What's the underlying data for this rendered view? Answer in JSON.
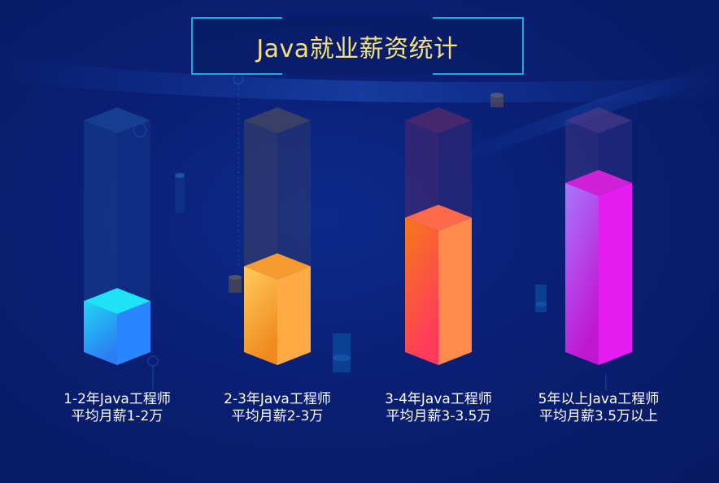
{
  "title": "Java就业薪资统计",
  "colors": {
    "title_text": "#f6e27a",
    "title_border": "#1fa8df",
    "label_text": "#ffffff"
  },
  "chart_data": {
    "type": "bar",
    "style": "3d-cylinder-glass",
    "title": "Java就业薪资统计",
    "categories": [
      [
        "1-2年Java工程师",
        "平均月薪1-2万"
      ],
      [
        "2-3年Java工程师",
        "平均月薪2-3万"
      ],
      [
        "3-4年Java工程师",
        "平均月薪3-3.5万"
      ],
      [
        "5年以上Java工程师",
        "平均月薪3.5万以上"
      ]
    ],
    "values": [
      22,
      37,
      58,
      73
    ],
    "ylim": [
      0,
      100
    ],
    "grid": false,
    "axes_visible": false,
    "bar_colors": [
      {
        "front_top": "#20d6f4",
        "front_bottom": "#2c7df2",
        "side": "#2a86ff",
        "top": "#1ee2f5",
        "glass": "#1a4a9a"
      },
      {
        "front_top": "#ffcc5c",
        "front_bottom": "#f08a1e",
        "side": "#ffaa44",
        "top": "#f79a30",
        "glass": "#4a4a5e"
      },
      {
        "front_top": "#f57a1a",
        "front_bottom": "#ff3a5c",
        "side": "#ff8a4e",
        "top": "#ff6a4a",
        "glass": "#5a2a6a"
      },
      {
        "front_top": "#a877ff",
        "front_bottom": "#c016d0",
        "side": "#e41ef0",
        "top": "#d020d8",
        "glass": "#4a3a8a"
      }
    ]
  }
}
